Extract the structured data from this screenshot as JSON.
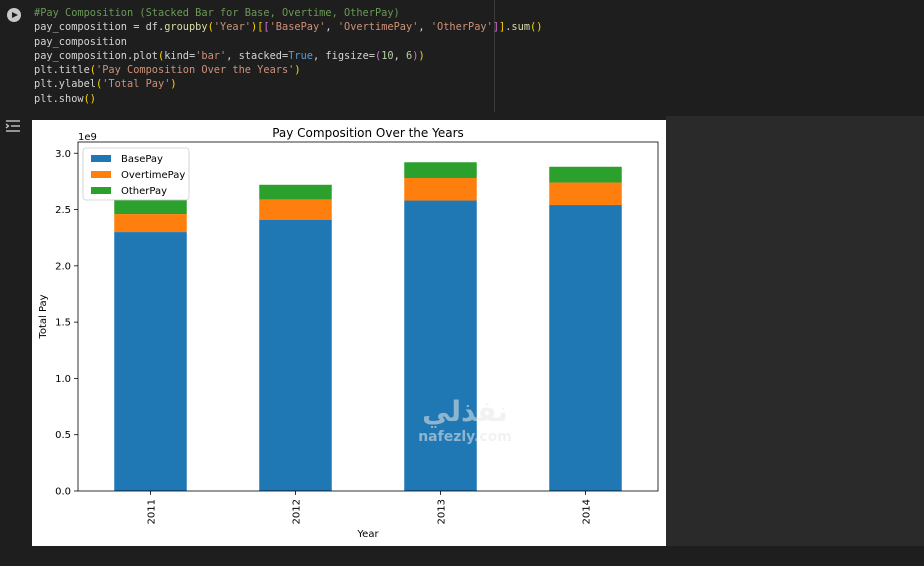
{
  "cell": {
    "run_button": "run-cell",
    "code_lines": [
      [
        {
          "t": "#Pay Composition (Stacked Bar for Base, Overtime, OtherPay)",
          "c": "comment"
        }
      ],
      [
        {
          "t": "pay_composition = df.",
          "c": ""
        },
        {
          "t": "groupby",
          "c": "fn"
        },
        {
          "t": "(",
          "c": "p1"
        },
        {
          "t": "'Year'",
          "c": "str"
        },
        {
          "t": ")",
          "c": "p1"
        },
        {
          "t": "[",
          "c": "p1"
        },
        {
          "t": "[",
          "c": "p2"
        },
        {
          "t": "'BasePay'",
          "c": "str"
        },
        {
          "t": ", ",
          "c": ""
        },
        {
          "t": "'OvertimePay'",
          "c": "str"
        },
        {
          "t": ", ",
          "c": ""
        },
        {
          "t": "'OtherPay'",
          "c": "str"
        },
        {
          "t": "]",
          "c": "p2"
        },
        {
          "t": "]",
          "c": "p1"
        },
        {
          "t": ".",
          "c": ""
        },
        {
          "t": "sum",
          "c": "fn"
        },
        {
          "t": "()",
          "c": "p1"
        }
      ],
      [
        {
          "t": "pay_composition",
          "c": ""
        }
      ],
      [
        {
          "t": "pay_composition.plot",
          "c": ""
        },
        {
          "t": "(",
          "c": "p1"
        },
        {
          "t": "kind=",
          "c": ""
        },
        {
          "t": "'bar'",
          "c": "str"
        },
        {
          "t": ", stacked=",
          "c": ""
        },
        {
          "t": "True",
          "c": "kw"
        },
        {
          "t": ", figsize=",
          "c": ""
        },
        {
          "t": "(",
          "c": "p2"
        },
        {
          "t": "10",
          "c": "num"
        },
        {
          "t": ", ",
          "c": ""
        },
        {
          "t": "6",
          "c": "num"
        },
        {
          "t": ")",
          "c": "p2"
        },
        {
          "t": ")",
          "c": "p1"
        }
      ],
      [
        {
          "t": "plt.title",
          "c": ""
        },
        {
          "t": "(",
          "c": "p1"
        },
        {
          "t": "'Pay Composition Over the Years'",
          "c": "str"
        },
        {
          "t": ")",
          "c": "p1"
        }
      ],
      [
        {
          "t": "plt.ylabel",
          "c": ""
        },
        {
          "t": "(",
          "c": "p1"
        },
        {
          "t": "'Total Pay'",
          "c": "str"
        },
        {
          "t": ")",
          "c": "p1"
        }
      ],
      [
        {
          "t": "plt.show",
          "c": ""
        },
        {
          "t": "()",
          "c": "p1"
        }
      ]
    ]
  },
  "chart_data": {
    "type": "bar",
    "stacked": true,
    "title": "Pay Composition Over the Years",
    "xlabel": "Year",
    "ylabel": "Total Pay",
    "offset_label": "1e9",
    "categories": [
      "2011",
      "2012",
      "2013",
      "2014"
    ],
    "series": [
      {
        "name": "BasePay",
        "color": "#1f77b4",
        "values": [
          2.3,
          2.41,
          2.58,
          2.54
        ]
      },
      {
        "name": "OvertimePay",
        "color": "#ff7f0e",
        "values": [
          0.16,
          0.18,
          0.2,
          0.2
        ]
      },
      {
        "name": "OtherPay",
        "color": "#2ca02c",
        "values": [
          0.13,
          0.13,
          0.14,
          0.14
        ]
      }
    ],
    "ylim": [
      0,
      3.1
    ],
    "yticks": [
      "0.0",
      "0.5",
      "1.0",
      "1.5",
      "2.0",
      "2.5",
      "3.0"
    ],
    "legend_position": "top-left",
    "grid": false
  },
  "watermark": {
    "arabic": "نفذلي",
    "latin": "nafezly.com"
  }
}
